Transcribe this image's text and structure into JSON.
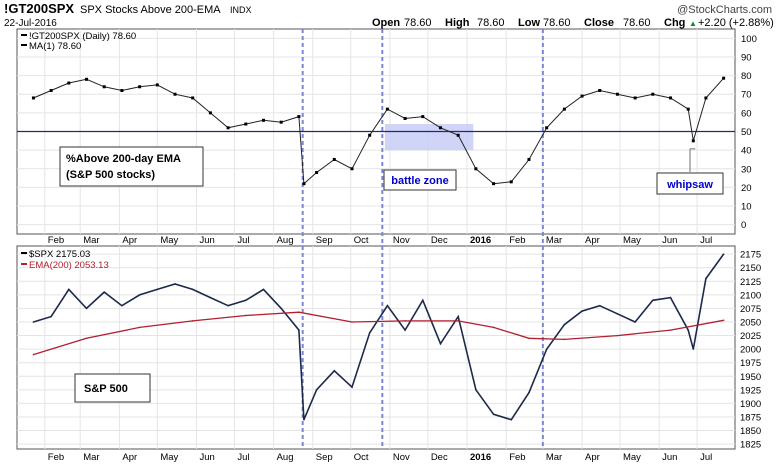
{
  "header": {
    "symbol": "!GT200SPX",
    "description": "SPX Stocks Above 200-EMA",
    "exchange": "INDX",
    "date": "22-Jul-2016",
    "watermark": "@StockCharts.com",
    "ohlc": [
      {
        "label": "Open",
        "value": "78.60"
      },
      {
        "label": "High",
        "value": "78.60"
      },
      {
        "label": "Low",
        "value": "78.60"
      },
      {
        "label": "Close",
        "value": "78.60"
      },
      {
        "label": "Chg",
        "value": "+2.20 (+2.88%)"
      }
    ],
    "chg_arrow": "▲"
  },
  "top_panel": {
    "legend": [
      {
        "text": "!GT200SPX (Daily) 78.60",
        "color": "#000000"
      },
      {
        "text": "MA(1) 78.60",
        "color": "#000000"
      }
    ],
    "annotations": {
      "main_box": [
        "%Above 200-day EMA",
        "(S&P 500 stocks)"
      ],
      "battle_zone": "battle zone",
      "whipsaw": "whipsaw"
    }
  },
  "bottom_panel": {
    "legend": [
      {
        "text": "$SPX 2175.03",
        "color": "#000000"
      },
      {
        "text": "EMA(200) 2053.13",
        "color": "#b02030"
      }
    ],
    "annotations": {
      "main_box": "S&P 500"
    }
  },
  "x_axis": {
    "months": [
      "Feb",
      "Mar",
      "Apr",
      "May",
      "Jun",
      "Jul",
      "Aug",
      "Sep",
      "Oct",
      "Nov",
      "Dec",
      "2016",
      "Feb",
      "Mar",
      "Apr",
      "May",
      "Jun",
      "Jul"
    ]
  },
  "colors": {
    "series": "#1c2a4a",
    "ema": "#b02030",
    "reference_line": "#1a2a8c",
    "highlight": "#c8ccf4",
    "annotation_text": "#0000cc",
    "vline": "#7a86dc"
  },
  "chart_data": [
    {
      "type": "line",
      "title": "!GT200SPX SPX Stocks Above 200-EMA",
      "ylabel": "",
      "ylim": [
        0,
        100
      ],
      "yticks": [
        0,
        10,
        20,
        30,
        40,
        50,
        60,
        70,
        80,
        90,
        100
      ],
      "reference_line": 50,
      "vertical_markers": [
        "2015-08-24",
        "2015-10-26",
        "2016-03-01"
      ],
      "highlight_range": {
        "x": [
          "2015-10-28",
          "2016-01-06"
        ],
        "y": [
          40,
          54
        ]
      },
      "grid": true,
      "series": [
        {
          "name": "!GT200SPX (Daily)",
          "x": [
            "2015-01-23",
            "2015-02-06",
            "2015-02-20",
            "2015-03-06",
            "2015-03-20",
            "2015-04-03",
            "2015-04-17",
            "2015-05-01",
            "2015-05-15",
            "2015-05-29",
            "2015-06-12",
            "2015-06-26",
            "2015-07-10",
            "2015-07-24",
            "2015-08-07",
            "2015-08-21",
            "2015-08-25",
            "2015-09-04",
            "2015-09-18",
            "2015-10-02",
            "2015-10-16",
            "2015-10-30",
            "2015-11-13",
            "2015-11-27",
            "2015-12-11",
            "2015-12-25",
            "2016-01-08",
            "2016-01-22",
            "2016-02-05",
            "2016-02-19",
            "2016-03-04",
            "2016-03-18",
            "2016-04-01",
            "2016-04-15",
            "2016-04-29",
            "2016-05-13",
            "2016-05-27",
            "2016-06-10",
            "2016-06-24",
            "2016-06-28",
            "2016-07-08",
            "2016-07-22"
          ],
          "y": [
            68,
            72,
            76,
            78,
            74,
            72,
            74,
            75,
            70,
            68,
            60,
            52,
            54,
            56,
            55,
            58,
            22,
            28,
            35,
            30,
            48,
            62,
            57,
            58,
            52,
            48,
            30,
            22,
            23,
            35,
            52,
            62,
            69,
            72,
            70,
            68,
            70,
            68,
            62,
            45,
            68,
            78.6
          ]
        }
      ]
    },
    {
      "type": "line",
      "title": "",
      "ylabel": "",
      "ylim": [
        1825,
        2185
      ],
      "yticks": [
        1825,
        1850,
        1875,
        1900,
        1925,
        1950,
        1975,
        2000,
        2025,
        2050,
        2075,
        2100,
        2125,
        2150,
        2175
      ],
      "vertical_markers": [
        "2015-08-24",
        "2015-10-26",
        "2016-03-01"
      ],
      "grid": true,
      "series": [
        {
          "name": "$SPX",
          "x": [
            "2015-01-23",
            "2015-02-06",
            "2015-02-20",
            "2015-03-06",
            "2015-03-20",
            "2015-04-03",
            "2015-04-17",
            "2015-05-01",
            "2015-05-15",
            "2015-05-29",
            "2015-06-12",
            "2015-06-26",
            "2015-07-10",
            "2015-07-24",
            "2015-08-07",
            "2015-08-21",
            "2015-08-25",
            "2015-09-04",
            "2015-09-18",
            "2015-10-02",
            "2015-10-16",
            "2015-10-30",
            "2015-11-13",
            "2015-11-27",
            "2015-12-11",
            "2015-12-25",
            "2016-01-08",
            "2016-01-22",
            "2016-02-05",
            "2016-02-19",
            "2016-03-04",
            "2016-03-18",
            "2016-04-01",
            "2016-04-15",
            "2016-04-29",
            "2016-05-13",
            "2016-05-27",
            "2016-06-10",
            "2016-06-24",
            "2016-06-28",
            "2016-07-08",
            "2016-07-22"
          ],
          "y": [
            2050,
            2060,
            2110,
            2075,
            2105,
            2080,
            2100,
            2110,
            2120,
            2110,
            2095,
            2080,
            2090,
            2110,
            2075,
            2035,
            1870,
            1925,
            1960,
            1930,
            2030,
            2080,
            2035,
            2090,
            2010,
            2060,
            1925,
            1880,
            1870,
            1920,
            2000,
            2045,
            2070,
            2080,
            2065,
            2050,
            2090,
            2095,
            2035,
            2000,
            2130,
            2175
          ]
        },
        {
          "name": "EMA(200)",
          "x": [
            "2015-01-23",
            "2015-03-06",
            "2015-04-17",
            "2015-05-29",
            "2015-07-10",
            "2015-08-21",
            "2015-10-02",
            "2015-11-13",
            "2015-12-25",
            "2016-01-22",
            "2016-02-19",
            "2016-03-18",
            "2016-04-29",
            "2016-06-10",
            "2016-07-22"
          ],
          "y": [
            1990,
            2020,
            2040,
            2052,
            2062,
            2068,
            2050,
            2052,
            2052,
            2040,
            2020,
            2018,
            2025,
            2035,
            2053.13
          ]
        }
      ]
    }
  ]
}
